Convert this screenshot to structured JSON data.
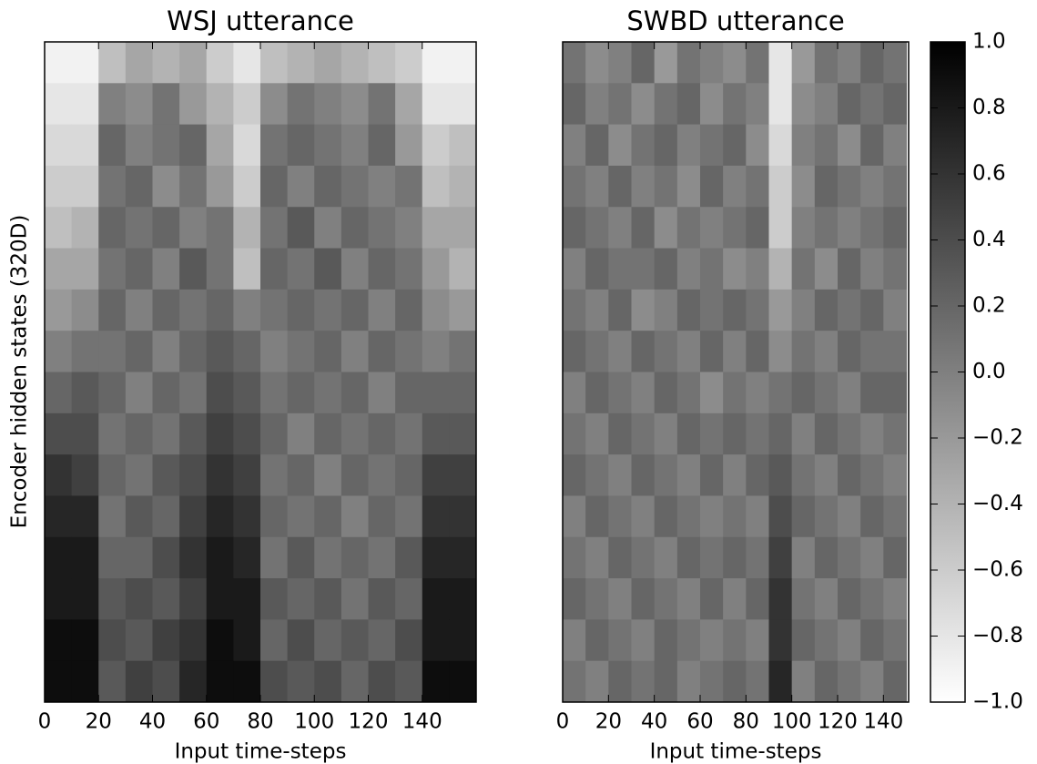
{
  "chart_data": [
    {
      "type": "heatmap",
      "title": "WSJ utterance",
      "xlabel": "Input time-steps",
      "ylabel": "Encoder hidden states (320D)",
      "xlim": [
        0,
        160
      ],
      "xticks": [
        0,
        20,
        40,
        60,
        80,
        100,
        120,
        140
      ],
      "xbins": [
        0,
        10,
        20,
        30,
        40,
        50,
        60,
        70,
        80,
        90,
        100,
        110,
        120,
        130,
        140,
        150,
        160
      ],
      "z": [
        [
          -0.9,
          -0.9,
          -0.5,
          -0.3,
          -0.4,
          -0.3,
          -0.6,
          -0.8,
          -0.5,
          -0.4,
          -0.3,
          -0.4,
          -0.5,
          -0.6,
          -0.9,
          -0.9
        ],
        [
          -0.8,
          -0.8,
          0.0,
          -0.1,
          0.1,
          -0.2,
          -0.4,
          -0.6,
          -0.1,
          0.1,
          0.0,
          -0.1,
          0.1,
          -0.3,
          -0.8,
          -0.8
        ],
        [
          -0.7,
          -0.7,
          0.2,
          0.0,
          0.1,
          0.2,
          -0.3,
          -0.7,
          0.1,
          0.2,
          0.1,
          0.0,
          0.2,
          -0.2,
          -0.6,
          -0.5
        ],
        [
          -0.6,
          -0.6,
          0.1,
          0.2,
          -0.1,
          0.1,
          -0.2,
          -0.6,
          0.2,
          0.0,
          0.2,
          0.1,
          0.0,
          0.1,
          -0.5,
          -0.4
        ],
        [
          -0.5,
          -0.4,
          0.2,
          0.1,
          0.2,
          0.0,
          0.1,
          -0.4,
          0.1,
          0.3,
          0.0,
          0.2,
          0.1,
          0.0,
          -0.3,
          -0.3
        ],
        [
          -0.3,
          -0.3,
          0.1,
          0.2,
          0.0,
          0.3,
          0.1,
          -0.5,
          0.2,
          0.1,
          0.3,
          0.0,
          0.2,
          0.1,
          -0.2,
          -0.4
        ],
        [
          -0.2,
          -0.1,
          0.2,
          0.0,
          0.2,
          0.1,
          0.2,
          0.0,
          0.1,
          0.2,
          0.1,
          0.2,
          0.0,
          0.2,
          -0.1,
          -0.2
        ],
        [
          0.0,
          0.1,
          0.1,
          0.2,
          0.0,
          0.2,
          0.3,
          0.2,
          0.0,
          0.1,
          0.2,
          0.0,
          0.2,
          0.1,
          0.0,
          0.1
        ],
        [
          0.2,
          0.3,
          0.2,
          0.0,
          0.2,
          0.1,
          0.4,
          0.3,
          0.1,
          0.2,
          0.1,
          0.2,
          0.0,
          0.2,
          0.2,
          0.2
        ],
        [
          0.4,
          0.4,
          0.1,
          0.2,
          0.1,
          0.3,
          0.5,
          0.4,
          0.2,
          0.0,
          0.2,
          0.1,
          0.2,
          0.1,
          0.3,
          0.3
        ],
        [
          0.6,
          0.5,
          0.2,
          0.1,
          0.3,
          0.4,
          0.6,
          0.5,
          0.1,
          0.2,
          0.0,
          0.2,
          0.1,
          0.2,
          0.5,
          0.5
        ],
        [
          0.7,
          0.7,
          0.1,
          0.3,
          0.2,
          0.5,
          0.7,
          0.6,
          0.2,
          0.1,
          0.2,
          0.0,
          0.2,
          0.1,
          0.6,
          0.6
        ],
        [
          0.8,
          0.8,
          0.2,
          0.2,
          0.4,
          0.6,
          0.8,
          0.7,
          0.1,
          0.3,
          0.1,
          0.2,
          0.1,
          0.3,
          0.7,
          0.7
        ],
        [
          0.8,
          0.8,
          0.3,
          0.4,
          0.3,
          0.5,
          0.8,
          0.8,
          0.3,
          0.2,
          0.3,
          0.1,
          0.3,
          0.2,
          0.8,
          0.8
        ],
        [
          0.9,
          0.9,
          0.4,
          0.3,
          0.5,
          0.6,
          0.9,
          0.8,
          0.2,
          0.4,
          0.2,
          0.3,
          0.2,
          0.4,
          0.8,
          0.8
        ],
        [
          0.9,
          0.9,
          0.3,
          0.5,
          0.4,
          0.7,
          0.9,
          0.9,
          0.4,
          0.3,
          0.4,
          0.2,
          0.4,
          0.3,
          0.9,
          0.9
        ]
      ]
    },
    {
      "type": "heatmap",
      "title": "SWBD utterance",
      "xlabel": "Input time-steps",
      "xlim": [
        0,
        151
      ],
      "xticks": [
        0,
        20,
        40,
        60,
        80,
        100,
        120,
        140
      ],
      "xbins": [
        0,
        10,
        20,
        30,
        40,
        50,
        60,
        70,
        80,
        90,
        100,
        110,
        120,
        130,
        140,
        150
      ],
      "z": [
        [
          0.1,
          -0.1,
          0.0,
          0.2,
          -0.2,
          0.1,
          0.0,
          -0.1,
          0.1,
          -0.8,
          -0.2,
          0.1,
          0.0,
          0.2,
          0.1
        ],
        [
          0.2,
          0.0,
          0.1,
          -0.1,
          0.1,
          0.2,
          -0.1,
          0.1,
          0.0,
          -0.8,
          -0.1,
          0.0,
          0.2,
          0.1,
          0.2
        ],
        [
          0.0,
          0.2,
          -0.1,
          0.1,
          0.2,
          0.0,
          0.1,
          0.2,
          -0.1,
          -0.7,
          0.0,
          0.1,
          -0.1,
          0.2,
          0.0
        ],
        [
          0.1,
          0.0,
          0.2,
          0.0,
          0.1,
          -0.1,
          0.2,
          0.0,
          0.1,
          -0.6,
          -0.1,
          0.2,
          0.1,
          0.0,
          0.1
        ],
        [
          0.2,
          0.1,
          0.0,
          0.2,
          -0.1,
          0.1,
          0.0,
          0.1,
          0.2,
          -0.6,
          0.0,
          0.1,
          0.0,
          0.1,
          0.2
        ],
        [
          0.0,
          0.2,
          0.1,
          0.1,
          0.2,
          0.0,
          0.1,
          -0.1,
          0.0,
          -0.4,
          0.1,
          -0.1,
          0.2,
          0.0,
          0.1
        ],
        [
          0.1,
          0.0,
          0.2,
          -0.1,
          0.0,
          0.2,
          0.1,
          0.2,
          0.1,
          -0.2,
          0.0,
          0.2,
          0.1,
          0.2,
          0.0
        ],
        [
          0.2,
          0.1,
          0.0,
          0.2,
          0.1,
          0.0,
          0.2,
          0.0,
          0.2,
          -0.1,
          0.1,
          0.0,
          0.2,
          0.1,
          0.1
        ],
        [
          0.0,
          0.2,
          0.1,
          0.0,
          0.2,
          0.1,
          -0.1,
          0.1,
          0.0,
          0.1,
          0.2,
          0.1,
          0.0,
          0.2,
          0.2
        ],
        [
          0.1,
          0.0,
          0.2,
          0.1,
          0.0,
          0.2,
          0.1,
          0.2,
          0.1,
          0.2,
          0.0,
          0.2,
          0.1,
          0.0,
          0.1
        ],
        [
          0.2,
          0.1,
          0.0,
          0.2,
          0.1,
          0.0,
          0.2,
          0.0,
          0.2,
          0.3,
          0.1,
          0.0,
          0.2,
          0.1,
          0.0
        ],
        [
          0.0,
          0.2,
          0.1,
          0.0,
          0.2,
          0.1,
          0.0,
          0.1,
          0.0,
          0.4,
          0.2,
          0.1,
          0.0,
          0.2,
          0.1
        ],
        [
          0.1,
          0.0,
          0.2,
          0.1,
          0.0,
          0.2,
          0.1,
          0.2,
          0.1,
          0.5,
          0.0,
          0.2,
          0.1,
          0.0,
          0.2
        ],
        [
          0.2,
          0.1,
          0.0,
          0.2,
          0.1,
          0.0,
          0.2,
          0.0,
          0.2,
          0.6,
          0.1,
          0.0,
          0.2,
          0.1,
          0.0
        ],
        [
          0.0,
          0.2,
          0.1,
          0.0,
          0.2,
          0.1,
          0.0,
          0.1,
          0.0,
          0.6,
          0.2,
          0.1,
          0.0,
          0.2,
          0.1
        ],
        [
          0.1,
          0.0,
          0.2,
          0.1,
          0.2,
          0.0,
          0.1,
          0.2,
          0.1,
          0.7,
          0.0,
          0.2,
          0.1,
          0.0,
          0.2
        ]
      ]
    },
    {
      "type": "colorbar",
      "zlim": [
        -1,
        1
      ],
      "low_color": "#ffffff",
      "high_color": "#000000",
      "ticks": [
        {
          "value": 1,
          "label": "1.0"
        },
        {
          "value": 0.8,
          "label": "0.8"
        },
        {
          "value": 0.6,
          "label": "0.6"
        },
        {
          "value": 0.4,
          "label": "0.4"
        },
        {
          "value": 0.2,
          "label": "0.2"
        },
        {
          "value": 0,
          "label": "0.0"
        },
        {
          "value": -0.2,
          "label": "−0.2"
        },
        {
          "value": -0.4,
          "label": "−0.4"
        },
        {
          "value": -0.6,
          "label": "−0.6"
        },
        {
          "value": -0.8,
          "label": "−0.8"
        },
        {
          "value": -1,
          "label": "−1.0"
        }
      ]
    }
  ]
}
